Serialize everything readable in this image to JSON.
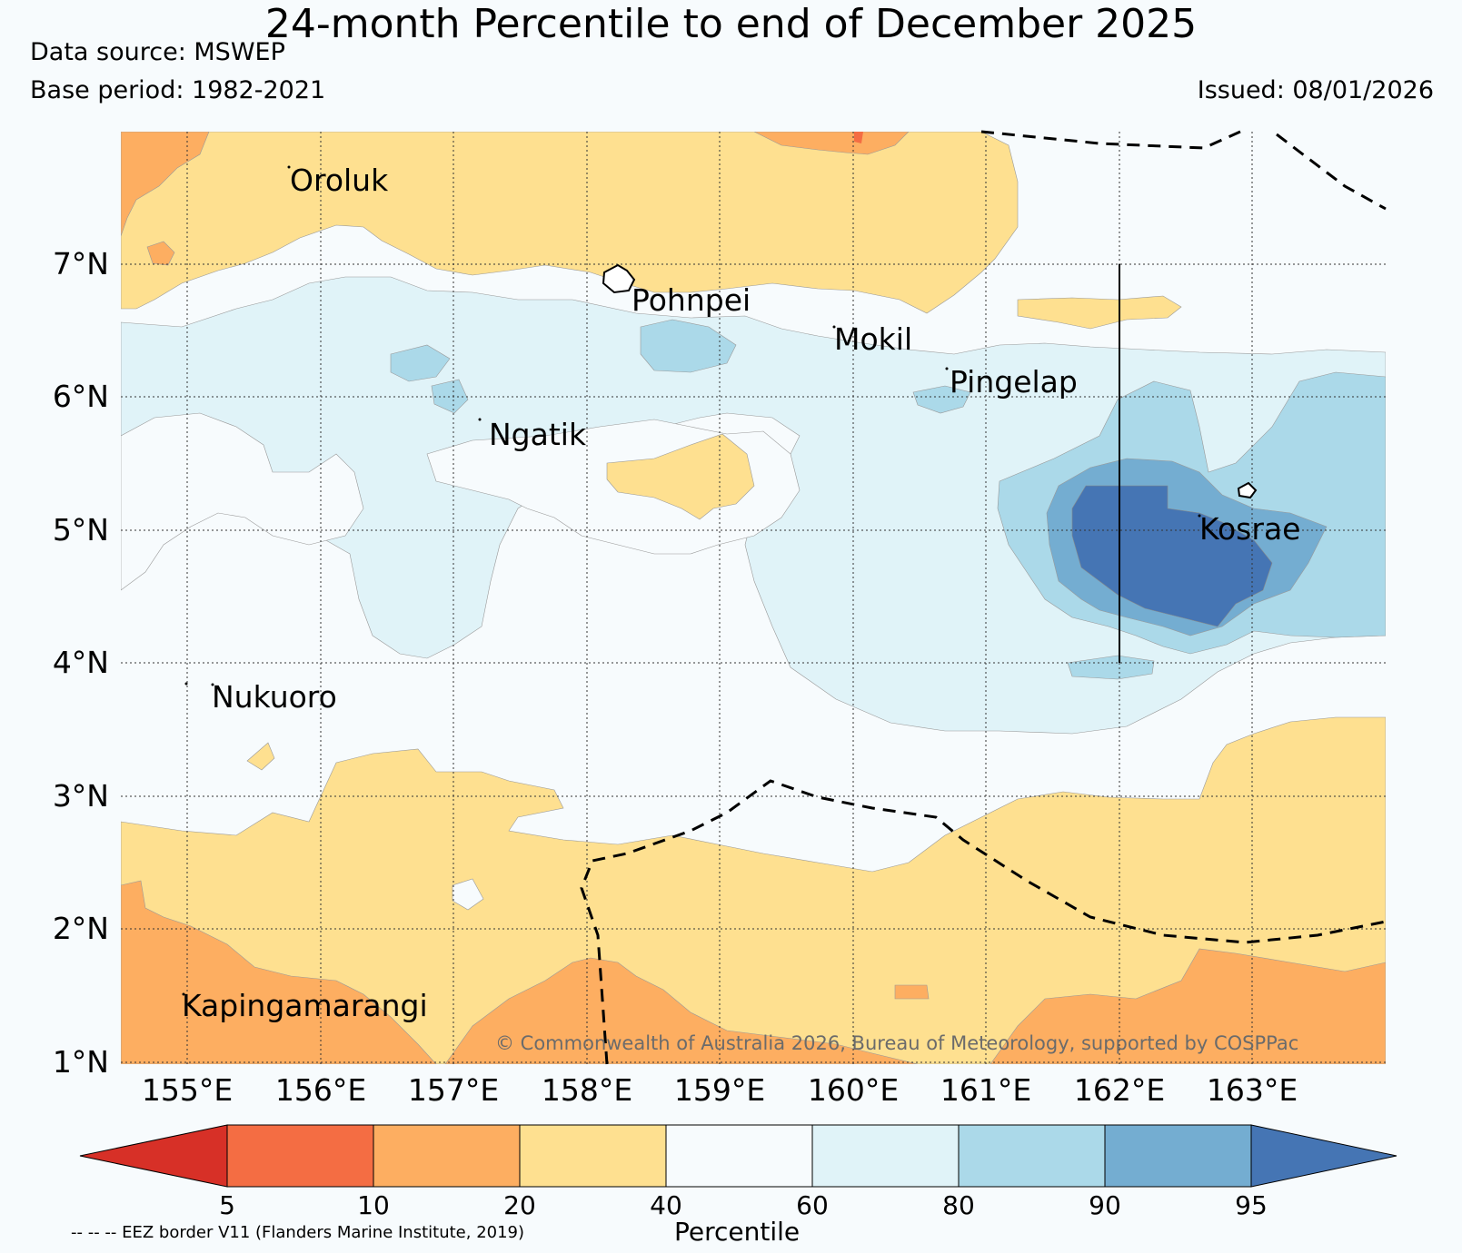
{
  "header": {
    "title": "24-month Percentile to end of December 2025",
    "data_source": "Data source: MSWEP",
    "base_period": "Base period: 1982-2021",
    "issued": "Issued: 08/01/2026"
  },
  "map": {
    "lat_labels": [
      "7°N",
      "6°N",
      "5°N",
      "4°N",
      "3°N",
      "2°N",
      "1°N"
    ],
    "lon_labels": [
      "155°E",
      "156°E",
      "157°E",
      "158°E",
      "159°E",
      "160°E",
      "161°E",
      "162°E",
      "163°E"
    ],
    "places": [
      "Oroluk",
      "Pohnpei",
      "Mokil",
      "Pingelap",
      "Ngatik",
      "Kosrae",
      "Nukuoro",
      "Kapingamarangi"
    ],
    "credit": "© Commonwealth of Australia 2026, Bureau of Meteorology, supported by COSPPac"
  },
  "colorbar": {
    "label": "Percentile",
    "ticks": [
      "5",
      "10",
      "20",
      "40",
      "60",
      "80",
      "90",
      "95"
    ],
    "colors": [
      "#d73027",
      "#f46d43",
      "#fdae61",
      "#fee090",
      "#f7fbfd",
      "#e0f3f8",
      "#abd9e9",
      "#74add1",
      "#4575b4"
    ]
  },
  "footnote": "-- -- -- EEZ border V11 (Flanders Marine Institute, 2019)"
}
